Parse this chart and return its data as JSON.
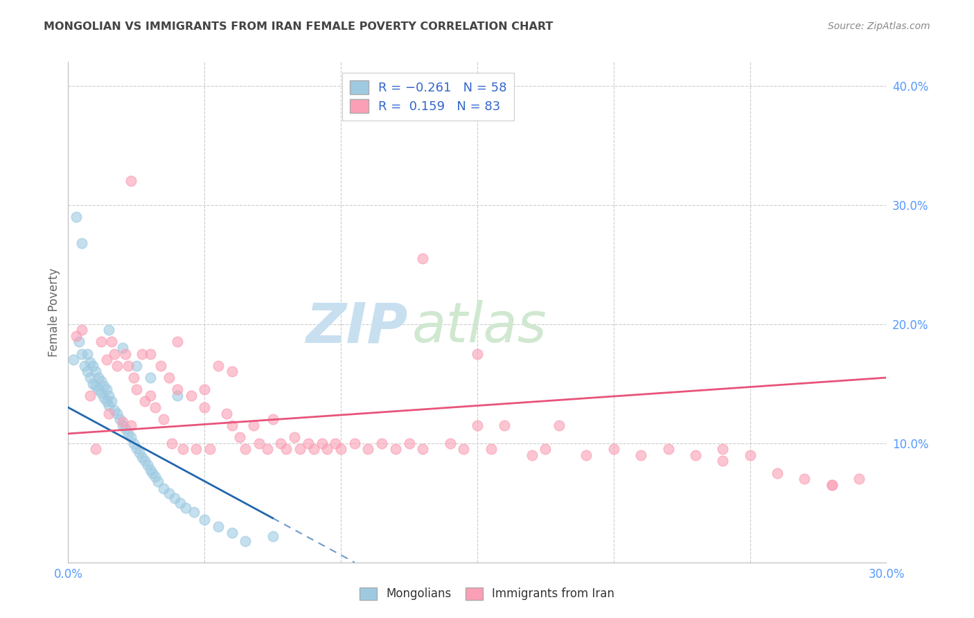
{
  "title": "MONGOLIAN VS IMMIGRANTS FROM IRAN FEMALE POVERTY CORRELATION CHART",
  "source": "Source: ZipAtlas.com",
  "ylabel": "Female Poverty",
  "xlim": [
    0.0,
    0.3
  ],
  "ylim": [
    0.0,
    0.42
  ],
  "xticks": [
    0.0,
    0.05,
    0.1,
    0.15,
    0.2,
    0.25,
    0.3
  ],
  "xtick_labels": [
    "0.0%",
    "",
    "",
    "",
    "",
    "",
    "30.0%"
  ],
  "yticks_right": [
    0.1,
    0.2,
    0.3,
    0.4
  ],
  "ytick_labels_right": [
    "10.0%",
    "20.0%",
    "30.0%",
    "40.0%"
  ],
  "mongolian_color": "#9ecae1",
  "iran_color": "#fa9fb5",
  "mongolian_line_color": "#2166ac",
  "iran_line_color": "#e8547a",
  "background_color": "#ffffff",
  "grid_color": "#cccccc",
  "axis_label_color": "#5599ff",
  "title_color": "#444444",
  "source_color": "#888888",
  "watermark_zip_color": "#c8dff0",
  "watermark_atlas_color": "#d0e8d0",
  "legend_label_color": "#3366cc",
  "legend_border_color": "#cccccc",
  "bottom_legend_label_color": "#333333",
  "mongo_line_x0": 0.0,
  "mongo_line_y0": 0.13,
  "mongo_line_x1": 0.105,
  "mongo_line_y1": 0.0,
  "mongo_line_solid_end": 0.075,
  "iran_line_x0": 0.0,
  "iran_line_y0": 0.108,
  "iran_line_x1": 0.3,
  "iran_line_y1": 0.155,
  "mongo_points_x": [
    0.002,
    0.004,
    0.005,
    0.006,
    0.007,
    0.007,
    0.008,
    0.008,
    0.009,
    0.009,
    0.01,
    0.01,
    0.011,
    0.011,
    0.012,
    0.012,
    0.013,
    0.013,
    0.014,
    0.014,
    0.015,
    0.015,
    0.016,
    0.017,
    0.018,
    0.019,
    0.02,
    0.021,
    0.022,
    0.023,
    0.024,
    0.025,
    0.026,
    0.027,
    0.028,
    0.029,
    0.03,
    0.031,
    0.032,
    0.033,
    0.035,
    0.037,
    0.039,
    0.041,
    0.043,
    0.046,
    0.05,
    0.055,
    0.06,
    0.065,
    0.003,
    0.005,
    0.015,
    0.02,
    0.025,
    0.03,
    0.04,
    0.075
  ],
  "mongo_points_y": [
    0.17,
    0.185,
    0.175,
    0.165,
    0.175,
    0.16,
    0.168,
    0.155,
    0.165,
    0.15,
    0.16,
    0.148,
    0.155,
    0.145,
    0.152,
    0.142,
    0.148,
    0.138,
    0.145,
    0.135,
    0.14,
    0.132,
    0.135,
    0.128,
    0.125,
    0.12,
    0.115,
    0.112,
    0.108,
    0.105,
    0.1,
    0.096,
    0.092,
    0.088,
    0.085,
    0.082,
    0.078,
    0.075,
    0.072,
    0.068,
    0.062,
    0.058,
    0.054,
    0.05,
    0.046,
    0.042,
    0.036,
    0.03,
    0.025,
    0.018,
    0.29,
    0.268,
    0.195,
    0.18,
    0.165,
    0.155,
    0.14,
    0.022
  ],
  "iran_points_x": [
    0.003,
    0.005,
    0.008,
    0.01,
    0.012,
    0.014,
    0.015,
    0.016,
    0.017,
    0.018,
    0.02,
    0.021,
    0.022,
    0.023,
    0.024,
    0.025,
    0.027,
    0.028,
    0.03,
    0.032,
    0.034,
    0.035,
    0.037,
    0.038,
    0.04,
    0.042,
    0.045,
    0.047,
    0.05,
    0.052,
    0.055,
    0.058,
    0.06,
    0.063,
    0.065,
    0.068,
    0.07,
    0.073,
    0.075,
    0.078,
    0.08,
    0.083,
    0.085,
    0.088,
    0.09,
    0.093,
    0.095,
    0.098,
    0.1,
    0.105,
    0.11,
    0.115,
    0.12,
    0.125,
    0.13,
    0.14,
    0.145,
    0.15,
    0.155,
    0.16,
    0.17,
    0.175,
    0.18,
    0.19,
    0.2,
    0.21,
    0.22,
    0.23,
    0.24,
    0.25,
    0.26,
    0.27,
    0.28,
    0.29,
    0.023,
    0.03,
    0.04,
    0.05,
    0.06,
    0.13,
    0.15,
    0.24,
    0.28
  ],
  "iran_points_y": [
    0.19,
    0.195,
    0.14,
    0.095,
    0.185,
    0.17,
    0.125,
    0.185,
    0.175,
    0.165,
    0.118,
    0.175,
    0.165,
    0.115,
    0.155,
    0.145,
    0.175,
    0.135,
    0.14,
    0.13,
    0.165,
    0.12,
    0.155,
    0.1,
    0.145,
    0.095,
    0.14,
    0.095,
    0.13,
    0.095,
    0.165,
    0.125,
    0.115,
    0.105,
    0.095,
    0.115,
    0.1,
    0.095,
    0.12,
    0.1,
    0.095,
    0.105,
    0.095,
    0.1,
    0.095,
    0.1,
    0.095,
    0.1,
    0.095,
    0.1,
    0.095,
    0.1,
    0.095,
    0.1,
    0.095,
    0.1,
    0.095,
    0.115,
    0.095,
    0.115,
    0.09,
    0.095,
    0.115,
    0.09,
    0.095,
    0.09,
    0.095,
    0.09,
    0.095,
    0.09,
    0.075,
    0.07,
    0.065,
    0.07,
    0.32,
    0.175,
    0.185,
    0.145,
    0.16,
    0.255,
    0.175,
    0.085,
    0.065
  ]
}
